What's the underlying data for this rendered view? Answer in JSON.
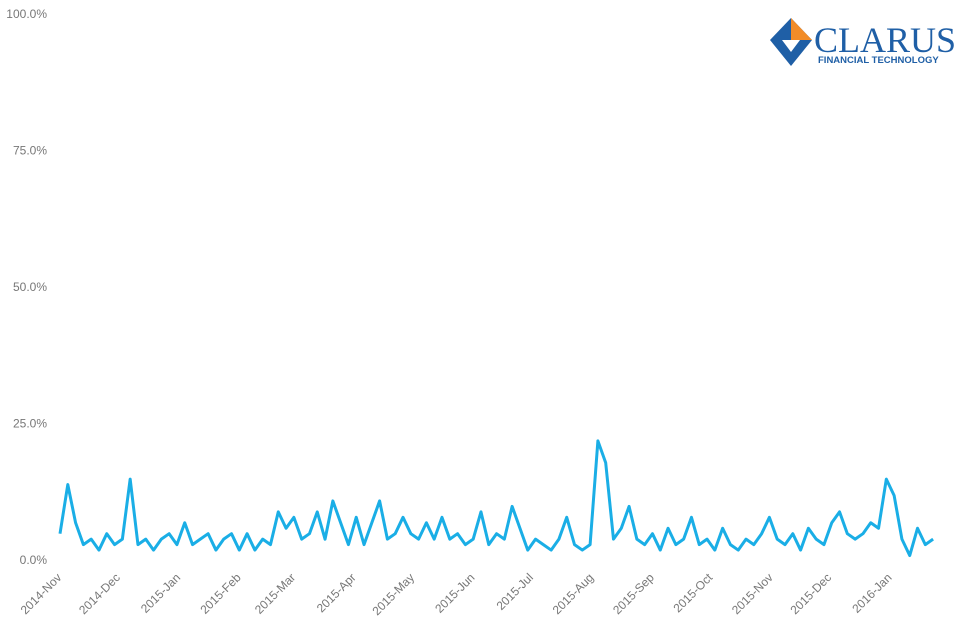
{
  "logo": {
    "name": "CLARUS",
    "tagline": "FINANCIAL TECHNOLOGY"
  },
  "chart_data": {
    "type": "line",
    "x": [
      0,
      4,
      8,
      12,
      16,
      20,
      24,
      28,
      32,
      36,
      40,
      44,
      48,
      52,
      56,
      60,
      64,
      68,
      72,
      76,
      80,
      84,
      88,
      92,
      96,
      100,
      104,
      108,
      112,
      116,
      120,
      124,
      128,
      132,
      136,
      140,
      144,
      148,
      152,
      156,
      160,
      164,
      168,
      172,
      176,
      180,
      184,
      188,
      192,
      196,
      200,
      204,
      208,
      212,
      216,
      220,
      224,
      228,
      232,
      236,
      240,
      244,
      248,
      252,
      256,
      260,
      264,
      268,
      272,
      276,
      280,
      284,
      288,
      292,
      296,
      300,
      304,
      308,
      312,
      316,
      320,
      324,
      328,
      332,
      336,
      340,
      344,
      348,
      352,
      356,
      360,
      364,
      368,
      372,
      376,
      380,
      384,
      388,
      392,
      396,
      400,
      404,
      408,
      412,
      416,
      420,
      424,
      428,
      432,
      436,
      440,
      444,
      448
    ],
    "series": [
      {
        "color": "#1aaee6",
        "values": [
          5,
          14,
          7,
          3,
          4,
          2,
          5,
          3,
          4,
          15,
          3,
          4,
          2,
          4,
          5,
          3,
          7,
          3,
          4,
          5,
          2,
          4,
          5,
          2,
          5,
          2,
          4,
          3,
          9,
          6,
          8,
          4,
          5,
          9,
          4,
          11,
          7,
          3,
          8,
          3,
          7,
          11,
          4,
          5,
          8,
          5,
          4,
          7,
          4,
          8,
          4,
          5,
          3,
          4,
          9,
          3,
          5,
          4,
          10,
          6,
          2,
          4,
          3,
          2,
          4,
          8,
          3,
          2,
          3,
          22,
          18,
          4,
          6,
          10,
          4,
          3,
          5,
          2,
          6,
          3,
          4,
          8,
          3,
          4,
          2,
          6,
          3,
          2,
          4,
          3,
          5,
          8,
          4,
          3,
          5,
          2,
          6,
          4,
          3,
          7,
          9,
          5,
          4,
          5,
          7,
          6,
          15,
          12,
          4,
          1,
          6,
          3,
          4
        ]
      }
    ],
    "xlim": [
      0,
      450
    ],
    "xticks": [
      {
        "value": 0,
        "label": "2014-Nov"
      },
      {
        "value": 30,
        "label": "2014-Dec"
      },
      {
        "value": 61,
        "label": "2015-Jan"
      },
      {
        "value": 92,
        "label": "2015-Feb"
      },
      {
        "value": 120,
        "label": "2015-Mar"
      },
      {
        "value": 151,
        "label": "2015-Apr"
      },
      {
        "value": 181,
        "label": "2015-May"
      },
      {
        "value": 212,
        "label": "2015-Jun"
      },
      {
        "value": 242,
        "label": "2015-Jul"
      },
      {
        "value": 273,
        "label": "2015-Aug"
      },
      {
        "value": 304,
        "label": "2015-Sep"
      },
      {
        "value": 334,
        "label": "2015-Oct"
      },
      {
        "value": 365,
        "label": "2015-Nov"
      },
      {
        "value": 395,
        "label": "2015-Dec"
      },
      {
        "value": 426,
        "label": "2016-Jan"
      }
    ],
    "ylim": [
      0,
      100
    ],
    "yticks": [
      {
        "value": 0,
        "label": "0.0%"
      },
      {
        "value": 25,
        "label": "25.0%"
      },
      {
        "value": 50,
        "label": "50.0%"
      },
      {
        "value": 75,
        "label": "75.0%"
      },
      {
        "value": 100,
        "label": "100.0%"
      }
    ]
  }
}
